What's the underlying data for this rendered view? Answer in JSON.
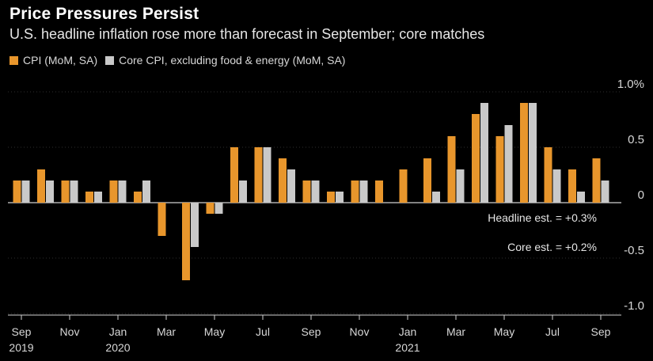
{
  "header": {
    "title": "Price Pressures Persist",
    "subtitle": "U.S. headline inflation rose more than forecast in September; core matches"
  },
  "legend": [
    {
      "label": "CPI (MoM, SA)",
      "color": "#e8962c"
    },
    {
      "label": "Core CPI, excluding food & energy (MoM, SA)",
      "color": "#c9c9c9"
    }
  ],
  "chart_data": {
    "type": "bar",
    "categories": [
      "Sep 2019",
      "Oct 2019",
      "Nov 2019",
      "Dec 2019",
      "Jan 2020",
      "Feb 2020",
      "Mar 2020",
      "Apr 2020",
      "May 2020",
      "Jun 2020",
      "Jul 2020",
      "Aug 2020",
      "Sep 2020",
      "Oct 2020",
      "Nov 2020",
      "Dec 2020",
      "Jan 2021",
      "Feb 2021",
      "Mar 2021",
      "Apr 2021",
      "May 2021",
      "Jun 2021",
      "Jul 2021",
      "Aug 2021",
      "Sep 2021"
    ],
    "series": [
      {
        "name": "CPI (MoM, SA)",
        "color": "#e8962c",
        "values": [
          0.2,
          0.3,
          0.2,
          0.1,
          0.2,
          0.1,
          -0.3,
          -0.7,
          -0.1,
          0.5,
          0.5,
          0.4,
          0.2,
          0.1,
          0.2,
          0.2,
          0.3,
          0.4,
          0.6,
          0.8,
          0.6,
          0.9,
          0.5,
          0.3,
          0.4
        ]
      },
      {
        "name": "Core CPI, excluding food & energy (MoM, SA)",
        "color": "#c9c9c9",
        "values": [
          0.2,
          0.2,
          0.2,
          0.1,
          0.2,
          0.2,
          null,
          -0.4,
          -0.1,
          0.2,
          0.5,
          0.3,
          0.2,
          0.1,
          0.2,
          null,
          null,
          0.1,
          0.3,
          0.9,
          0.7,
          0.9,
          0.3,
          0.1,
          0.2
        ]
      }
    ],
    "ylim": [
      -1.0,
      1.0
    ],
    "y_ticks": [
      {
        "value": 1.0,
        "label": "1.0%"
      },
      {
        "value": 0.5,
        "label": "0.5"
      },
      {
        "value": 0,
        "label": "0"
      },
      {
        "value": -0.5,
        "label": "-0.5"
      },
      {
        "value": -1.0,
        "label": "-1.0"
      }
    ],
    "x_ticks": [
      {
        "index": 0,
        "label": "Sep",
        "year": "2019"
      },
      {
        "index": 2,
        "label": "Nov",
        "year": ""
      },
      {
        "index": 4,
        "label": "Jan",
        "year": "2020"
      },
      {
        "index": 6,
        "label": "Mar",
        "year": ""
      },
      {
        "index": 8,
        "label": "May",
        "year": ""
      },
      {
        "index": 10,
        "label": "Jul",
        "year": ""
      },
      {
        "index": 12,
        "label": "Sep",
        "year": ""
      },
      {
        "index": 14,
        "label": "Nov",
        "year": ""
      },
      {
        "index": 16,
        "label": "Jan",
        "year": "2021"
      },
      {
        "index": 18,
        "label": "Mar",
        "year": ""
      },
      {
        "index": 20,
        "label": "May",
        "year": ""
      },
      {
        "index": 22,
        "label": "Jul",
        "year": ""
      },
      {
        "index": 24,
        "label": "Sep",
        "year": ""
      }
    ],
    "annotations": [
      "Headline est. = +0.3%",
      "Core est. = +0.2%"
    ]
  }
}
